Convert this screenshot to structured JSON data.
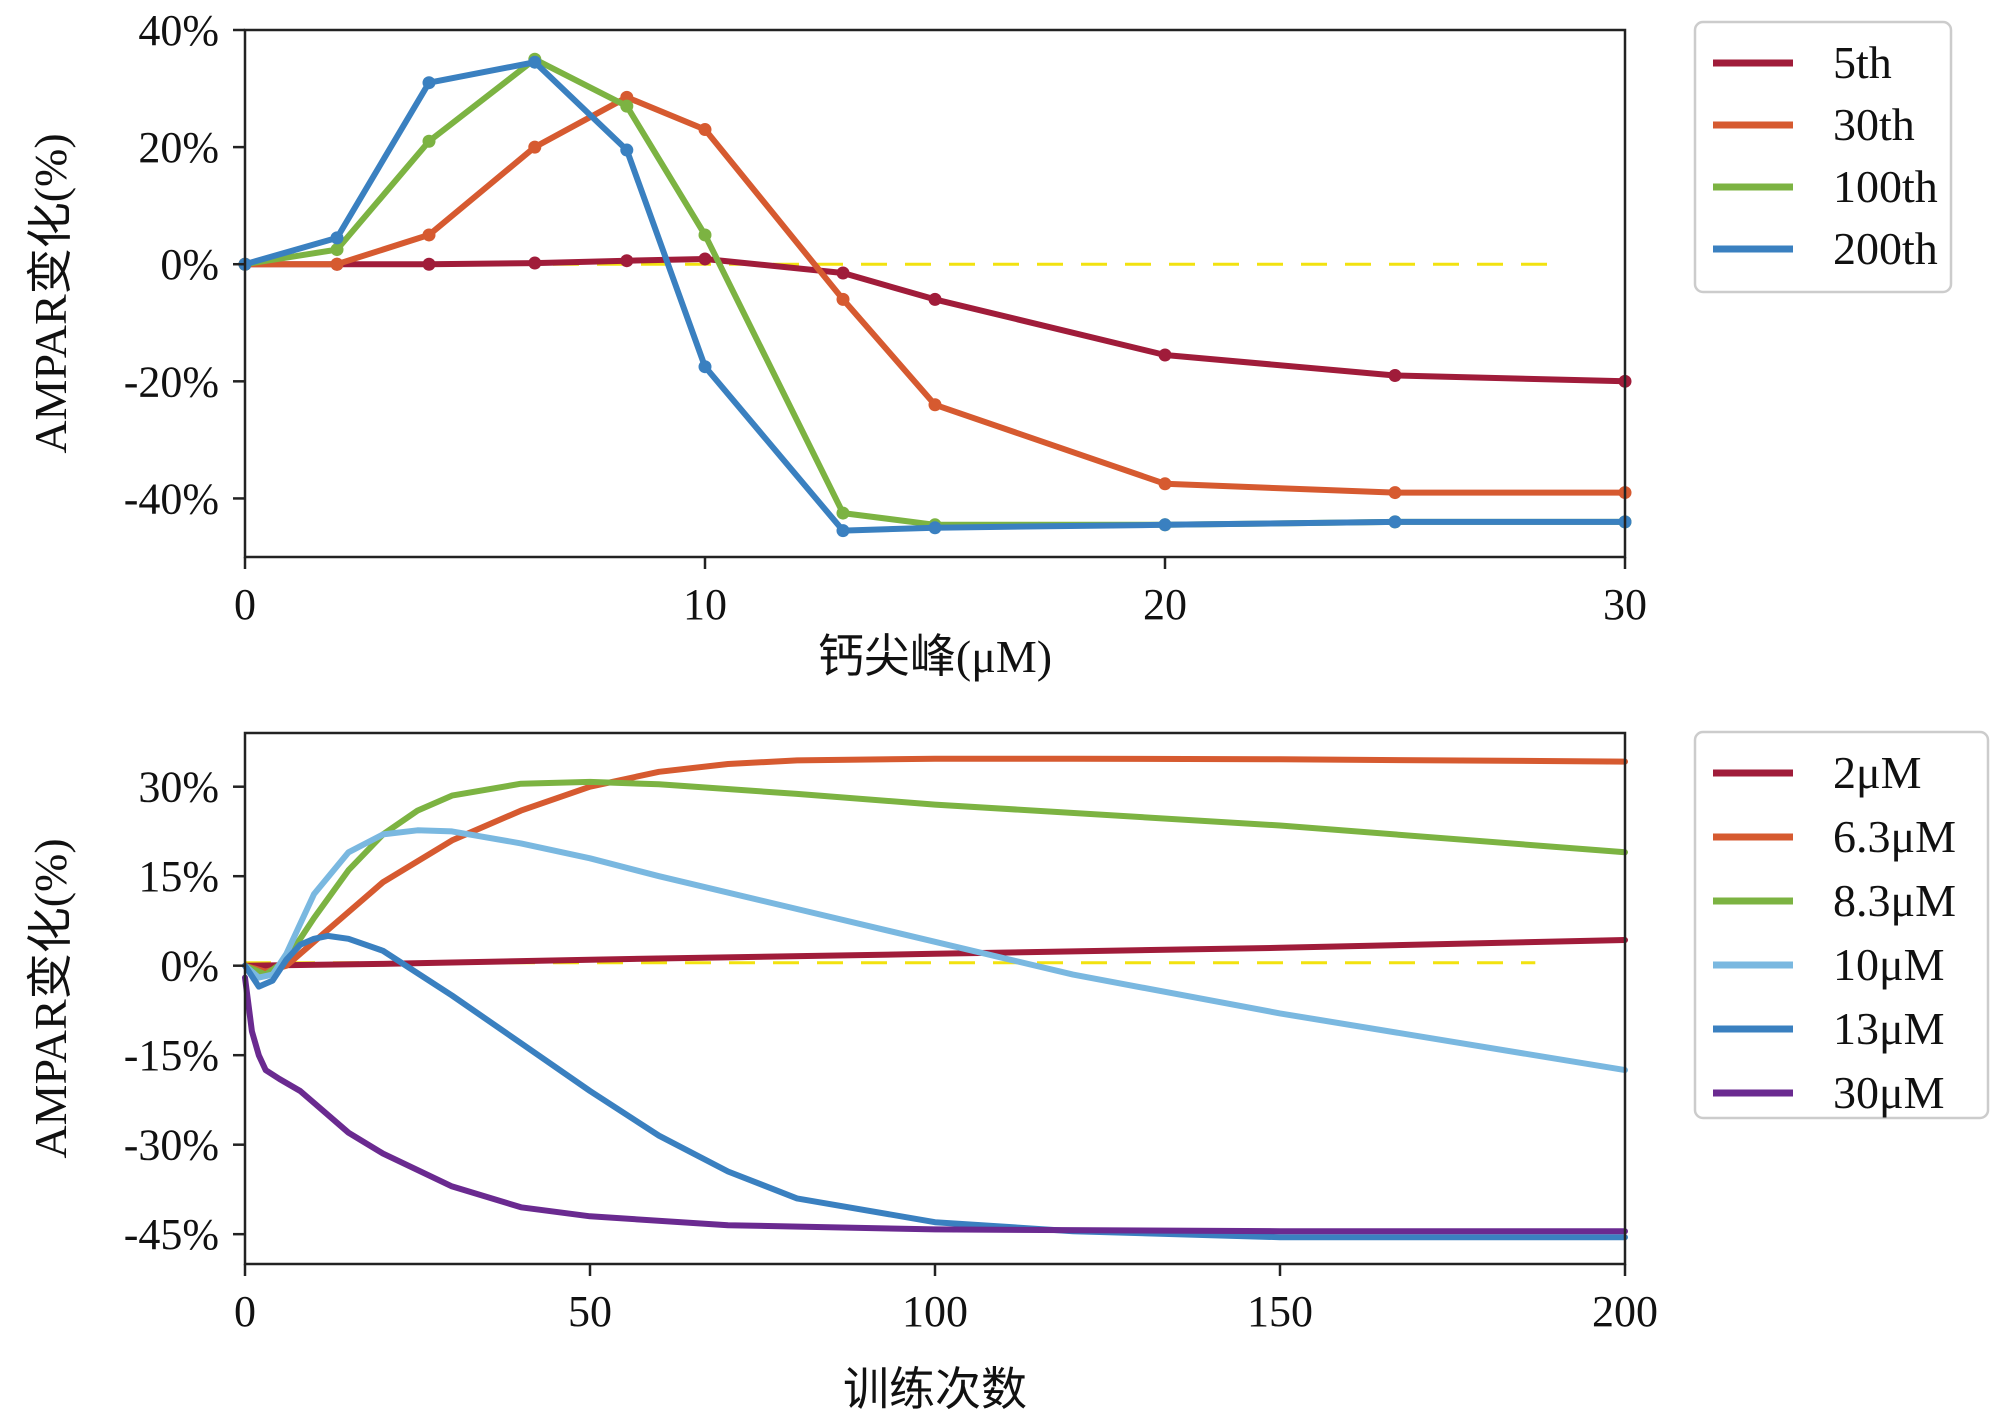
{
  "chart_data": [
    {
      "type": "line",
      "id": "top",
      "xlabel": "钙尖峰(μM)",
      "ylabel": "AMPAR变化(%)",
      "xlim": [
        0,
        30
      ],
      "ylim": [
        -50,
        40
      ],
      "xticks": [
        0,
        10,
        20,
        30
      ],
      "xtick_labels": [
        "0",
        "10",
        "20",
        "30"
      ],
      "yticks": [
        40,
        20,
        0,
        -20,
        -40
      ],
      "ytick_labels": [
        "40%",
        "20%",
        "0%",
        "-20%",
        "-40%"
      ],
      "reference_line": {
        "y": 0,
        "x_range": [
          0,
          28.5
        ],
        "color": "#f2e20f",
        "style": "dashed"
      },
      "markers": true,
      "legend_position": "outside-right",
      "series": [
        {
          "name": "5th",
          "color": "#a01c3a",
          "x": [
            0,
            2,
            4,
            6.3,
            8.3,
            10,
            13,
            15,
            20,
            25,
            30
          ],
          "y": [
            0,
            0,
            0,
            0.2,
            0.6,
            0.9,
            -1.5,
            -6,
            -15.5,
            -19,
            -20
          ]
        },
        {
          "name": "30th",
          "color": "#d65a30",
          "x": [
            0,
            2,
            4,
            6.3,
            8.3,
            10,
            13,
            15,
            20,
            25,
            30
          ],
          "y": [
            0,
            0,
            5,
            20,
            28.5,
            23,
            -6,
            -24,
            -37.5,
            -39,
            -39
          ]
        },
        {
          "name": "100th",
          "color": "#7cb342",
          "x": [
            0,
            2,
            4,
            6.3,
            8.3,
            10,
            13,
            15,
            20,
            25,
            30
          ],
          "y": [
            0,
            2.5,
            21,
            35,
            27,
            5,
            -42.5,
            -44.5,
            -44.5,
            -44,
            -44
          ]
        },
        {
          "name": "200th",
          "color": "#3a80c0",
          "x": [
            0,
            2,
            4,
            6.3,
            8.3,
            10,
            13,
            15,
            20,
            25,
            30
          ],
          "y": [
            0,
            4.5,
            31,
            34.5,
            19.5,
            -17.5,
            -45.5,
            -45,
            -44.5,
            -44,
            -44
          ]
        }
      ]
    },
    {
      "type": "line",
      "id": "bottom",
      "xlabel": "训练次数",
      "ylabel": "AMPAR变化(%)",
      "xlim": [
        0,
        200
      ],
      "ylim": [
        -50,
        39
      ],
      "xticks": [
        0,
        50,
        100,
        150,
        200
      ],
      "xtick_labels": [
        "0",
        "50",
        "100",
        "150",
        "200"
      ],
      "yticks": [
        30,
        15,
        0,
        -15,
        -30,
        -45
      ],
      "ytick_labels": [
        "30%",
        "15%",
        "0%",
        "-15%",
        "-30%",
        "-45%"
      ],
      "reference_line": {
        "y": 0.5,
        "x_range": [
          0,
          187
        ],
        "color": "#f2e20f",
        "style": "dashed"
      },
      "markers": false,
      "legend_position": "outside-right",
      "series": [
        {
          "name": "2μM",
          "color": "#a01c3a",
          "x": [
            0,
            20,
            50,
            100,
            150,
            200
          ],
          "y": [
            0,
            0.3,
            1,
            2,
            3,
            4.3
          ]
        },
        {
          "name": "6.3μM",
          "color": "#d65a30",
          "x": [
            0,
            3,
            6,
            10,
            15,
            20,
            30,
            40,
            50,
            60,
            70,
            80,
            100,
            120,
            150,
            200
          ],
          "y": [
            0,
            -1,
            0,
            4,
            9,
            14,
            21,
            26,
            30,
            32.5,
            33.8,
            34.4,
            34.7,
            34.7,
            34.6,
            34.2
          ]
        },
        {
          "name": "8.3μM",
          "color": "#7cb342",
          "x": [
            0,
            3,
            6,
            10,
            15,
            20,
            25,
            30,
            40,
            50,
            60,
            80,
            100,
            150,
            200
          ],
          "y": [
            0,
            -1.5,
            1,
            8,
            16,
            22,
            26,
            28.5,
            30.5,
            30.8,
            30.4,
            28.8,
            27,
            23.5,
            19
          ]
        },
        {
          "name": "10μM",
          "color": "#7ab8e0",
          "x": [
            0,
            2,
            4,
            6,
            8,
            10,
            15,
            20,
            25,
            30,
            40,
            50,
            60,
            80,
            100,
            120,
            150,
            200
          ],
          "y": [
            0,
            -2,
            -1.5,
            2,
            7,
            12,
            19,
            22,
            22.7,
            22.5,
            20.5,
            18,
            15,
            9.5,
            4,
            -1.5,
            -8,
            -17.5
          ]
        },
        {
          "name": "13μM",
          "color": "#3a80c0",
          "x": [
            0,
            2,
            4,
            6,
            8,
            10,
            12,
            15,
            20,
            30,
            40,
            50,
            60,
            70,
            80,
            100,
            120,
            150,
            200
          ],
          "y": [
            0,
            -3.5,
            -2.5,
            1,
            3.5,
            4.5,
            5,
            4.5,
            2.5,
            -5,
            -13,
            -21,
            -28.5,
            -34.5,
            -39,
            -43,
            -44.5,
            -45.5,
            -45.5
          ]
        },
        {
          "name": "30μM",
          "color": "#6a2a90",
          "x": [
            0,
            1,
            2,
            3,
            5,
            8,
            10,
            15,
            20,
            30,
            40,
            50,
            70,
            100,
            150,
            200
          ],
          "y": [
            -2,
            -11,
            -15,
            -17.5,
            -19,
            -21,
            -23,
            -28,
            -31.5,
            -37,
            -40.5,
            -42,
            -43.5,
            -44.2,
            -44.5,
            -44.5
          ]
        }
      ]
    }
  ]
}
